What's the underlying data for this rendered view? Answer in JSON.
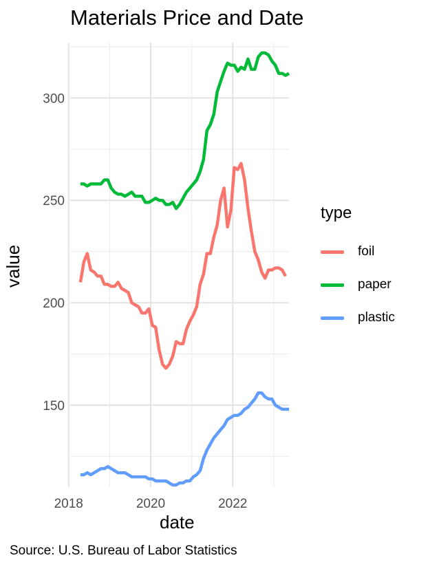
{
  "chart_data": {
    "type": "line",
    "title": "Materials Price and Date",
    "caption": "Source: U.S. Bureau of Labor Statistics",
    "xlabel": "date",
    "ylabel": "value",
    "xlim": [
      "2018-01-15",
      "2023-05-15"
    ],
    "ylim": [
      110,
      327
    ],
    "x_ticks": [
      2018,
      2020,
      2022
    ],
    "y_ticks": [
      150,
      200,
      250,
      300
    ],
    "grid": true,
    "legend": {
      "title": "type",
      "position": "right"
    },
    "series": [
      {
        "name": "foil",
        "color": "#F8766D",
        "points": [
          [
            "2018-04",
            210
          ],
          [
            "2018-05",
            220
          ],
          [
            "2018-06",
            224
          ],
          [
            "2018-07",
            216
          ],
          [
            "2018-08",
            215
          ],
          [
            "2018-09",
            213
          ],
          [
            "2018-10",
            213
          ],
          [
            "2018-11",
            209
          ],
          [
            "2018-12",
            209
          ],
          [
            "2019-01",
            208
          ],
          [
            "2019-02",
            208
          ],
          [
            "2019-03",
            210
          ],
          [
            "2019-04",
            207
          ],
          [
            "2019-05",
            206
          ],
          [
            "2019-06",
            205
          ],
          [
            "2019-07",
            200
          ],
          [
            "2019-08",
            199
          ],
          [
            "2019-09",
            198
          ],
          [
            "2019-10",
            195
          ],
          [
            "2019-11",
            195
          ],
          [
            "2019-12",
            197
          ],
          [
            "2020-01",
            189
          ],
          [
            "2020-02",
            188
          ],
          [
            "2020-03",
            177
          ],
          [
            "2020-04",
            170
          ],
          [
            "2020-05",
            168
          ],
          [
            "2020-06",
            170
          ],
          [
            "2020-07",
            174
          ],
          [
            "2020-08",
            181
          ],
          [
            "2020-09",
            180
          ],
          [
            "2020-10",
            180
          ],
          [
            "2020-11",
            187
          ],
          [
            "2020-12",
            191
          ],
          [
            "2021-01",
            194
          ],
          [
            "2021-02",
            198
          ],
          [
            "2021-03",
            209
          ],
          [
            "2021-04",
            214
          ],
          [
            "2021-05",
            224
          ],
          [
            "2021-06",
            224
          ],
          [
            "2021-07",
            232
          ],
          [
            "2021-08",
            238
          ],
          [
            "2021-09",
            250
          ],
          [
            "2021-10",
            256
          ],
          [
            "2021-11",
            237
          ],
          [
            "2021-12",
            245
          ],
          [
            "2022-01",
            266
          ],
          [
            "2022-02",
            265
          ],
          [
            "2022-03",
            268
          ],
          [
            "2022-04",
            260
          ],
          [
            "2022-05",
            246
          ],
          [
            "2022-06",
            235
          ],
          [
            "2022-07",
            225
          ],
          [
            "2022-08",
            221
          ],
          [
            "2022-09",
            215
          ],
          [
            "2022-10",
            212
          ],
          [
            "2022-11",
            216
          ],
          [
            "2022-12",
            216
          ],
          [
            "2023-01",
            217
          ],
          [
            "2023-02",
            217
          ],
          [
            "2023-03",
            216
          ],
          [
            "2023-04",
            213
          ]
        ]
      },
      {
        "name": "paper",
        "color": "#00BA38",
        "points": [
          [
            "2018-04",
            258
          ],
          [
            "2018-05",
            258
          ],
          [
            "2018-06",
            257
          ],
          [
            "2018-07",
            258
          ],
          [
            "2018-08",
            258
          ],
          [
            "2018-09",
            258
          ],
          [
            "2018-10",
            258
          ],
          [
            "2018-11",
            260
          ],
          [
            "2018-12",
            260
          ],
          [
            "2019-01",
            256
          ],
          [
            "2019-02",
            254
          ],
          [
            "2019-03",
            253
          ],
          [
            "2019-04",
            253
          ],
          [
            "2019-05",
            252
          ],
          [
            "2019-06",
            253
          ],
          [
            "2019-07",
            254
          ],
          [
            "2019-08",
            252
          ],
          [
            "2019-09",
            252
          ],
          [
            "2019-10",
            252
          ],
          [
            "2019-11",
            249
          ],
          [
            "2019-12",
            249
          ],
          [
            "2020-01",
            250
          ],
          [
            "2020-02",
            251
          ],
          [
            "2020-03",
            250
          ],
          [
            "2020-04",
            250
          ],
          [
            "2020-05",
            248
          ],
          [
            "2020-06",
            248
          ],
          [
            "2020-07",
            249
          ],
          [
            "2020-08",
            246
          ],
          [
            "2020-09",
            248
          ],
          [
            "2020-10",
            251
          ],
          [
            "2020-11",
            254
          ],
          [
            "2020-12",
            256
          ],
          [
            "2021-01",
            258
          ],
          [
            "2021-02",
            260
          ],
          [
            "2021-03",
            264
          ],
          [
            "2021-04",
            270
          ],
          [
            "2021-05",
            284
          ],
          [
            "2021-06",
            287
          ],
          [
            "2021-07",
            292
          ],
          [
            "2021-08",
            303
          ],
          [
            "2021-09",
            308
          ],
          [
            "2021-10",
            313
          ],
          [
            "2021-11",
            317
          ],
          [
            "2021-12",
            316
          ],
          [
            "2022-01",
            316
          ],
          [
            "2022-02",
            313
          ],
          [
            "2022-03",
            315
          ],
          [
            "2022-04",
            314
          ],
          [
            "2022-05",
            319
          ],
          [
            "2022-06",
            314
          ],
          [
            "2022-07",
            314
          ],
          [
            "2022-08",
            320
          ],
          [
            "2022-09",
            322
          ],
          [
            "2022-10",
            322
          ],
          [
            "2022-11",
            321
          ],
          [
            "2022-12",
            318
          ],
          [
            "2023-01",
            316
          ],
          [
            "2023-02",
            312
          ],
          [
            "2023-03",
            312
          ],
          [
            "2023-04",
            311
          ],
          [
            "2023-05",
            312
          ]
        ]
      },
      {
        "name": "plastic",
        "color": "#619CFF",
        "points": [
          [
            "2018-04",
            116
          ],
          [
            "2018-05",
            116
          ],
          [
            "2018-06",
            117
          ],
          [
            "2018-07",
            116
          ],
          [
            "2018-08",
            117
          ],
          [
            "2018-09",
            118
          ],
          [
            "2018-10",
            119
          ],
          [
            "2018-11",
            119
          ],
          [
            "2018-12",
            120
          ],
          [
            "2019-01",
            119
          ],
          [
            "2019-02",
            118
          ],
          [
            "2019-03",
            117
          ],
          [
            "2019-04",
            117
          ],
          [
            "2019-05",
            117
          ],
          [
            "2019-06",
            116
          ],
          [
            "2019-07",
            115
          ],
          [
            "2019-08",
            115
          ],
          [
            "2019-09",
            115
          ],
          [
            "2019-10",
            115
          ],
          [
            "2019-11",
            115
          ],
          [
            "2019-12",
            114
          ],
          [
            "2020-01",
            114
          ],
          [
            "2020-02",
            113
          ],
          [
            "2020-03",
            113
          ],
          [
            "2020-04",
            113
          ],
          [
            "2020-05",
            113
          ],
          [
            "2020-06",
            112
          ],
          [
            "2020-07",
            111
          ],
          [
            "2020-08",
            111
          ],
          [
            "2020-09",
            112
          ],
          [
            "2020-10",
            112
          ],
          [
            "2020-11",
            113
          ],
          [
            "2020-12",
            113
          ],
          [
            "2021-01",
            115
          ],
          [
            "2021-02",
            116
          ],
          [
            "2021-03",
            118
          ],
          [
            "2021-04",
            124
          ],
          [
            "2021-05",
            128
          ],
          [
            "2021-06",
            131
          ],
          [
            "2021-07",
            134
          ],
          [
            "2021-08",
            136
          ],
          [
            "2021-09",
            138
          ],
          [
            "2021-10",
            140
          ],
          [
            "2021-11",
            143
          ],
          [
            "2021-12",
            144
          ],
          [
            "2022-01",
            145
          ],
          [
            "2022-02",
            145
          ],
          [
            "2022-03",
            146
          ],
          [
            "2022-04",
            148
          ],
          [
            "2022-05",
            149
          ],
          [
            "2022-06",
            151
          ],
          [
            "2022-07",
            153
          ],
          [
            "2022-08",
            156
          ],
          [
            "2022-09",
            156
          ],
          [
            "2022-10",
            154
          ],
          [
            "2022-11",
            153
          ],
          [
            "2022-12",
            153
          ],
          [
            "2023-01",
            150
          ],
          [
            "2023-02",
            149
          ],
          [
            "2023-03",
            148
          ],
          [
            "2023-04",
            148
          ],
          [
            "2023-05",
            148
          ]
        ]
      }
    ]
  }
}
